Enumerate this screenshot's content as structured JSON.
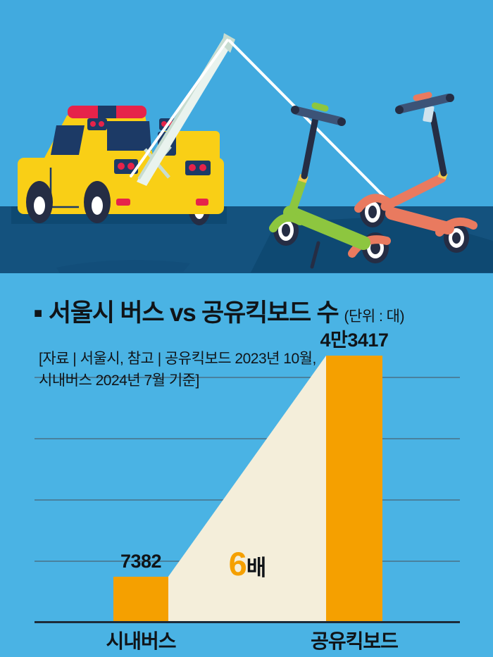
{
  "theme": {
    "sky": "#41aadf",
    "road": "#14527e",
    "shadow": "#0e4972",
    "truck-yellow": "#f9cf16",
    "navy": "#1c3a66",
    "dark-navy": "#252d44",
    "signal-red": "#e6234a",
    "boom-mint": "#e9f3ee",
    "boom-edge": "#c7dcd0",
    "cable-white": "#ffffff",
    "green": "#8dc63f",
    "coral": "#e97a5f",
    "band-yellow": "#f2c94c",
    "tag-blue": "#cfe3ee",
    "bar-steel": "#3c5377",
    "chart-bg": "#4ab3e4",
    "bar-orange": "#f5a000",
    "cream": "#f4eeda",
    "grid": "#4a7087",
    "axis": "#1d2b39",
    "ink": "#101418"
  },
  "illustration": {
    "description": "tow-truck-hoisting-shared-kickboards",
    "elements": [
      "tow-truck",
      "crane-boom",
      "tow-cable",
      "green-kickboard",
      "orange-kickboard",
      "road"
    ]
  },
  "texts": {
    "title_bullet": "■",
    "title": "서울시 버스 vs 공유킥보드 수",
    "unit_label": "(단위 : 대)",
    "source_line1": "[자료 | 서울시, 참고 | 공유킥보드 2023년 10월,",
    "source_line2": "시내버스 2024년 7월 기준]",
    "annotation_number": "6",
    "annotation_suffix": "배"
  },
  "chart_data": {
    "type": "bar",
    "title": "서울시 버스 vs 공유킥보드 수",
    "unit": "대",
    "source": "[자료 | 서울시, 참고 | 공유킥보드 2023년 10월, 시내버스 2024년 7월 기준]",
    "categories": [
      "시내버스",
      "공유킥보드"
    ],
    "values": [
      7382,
      43417
    ],
    "value_labels": [
      "7382",
      "4만3417"
    ],
    "annotation": "6배",
    "ylim": [
      0,
      45000
    ],
    "gridlines": [
      10000,
      20000,
      30000,
      40000
    ],
    "grid": true,
    "legend": false,
    "bar_color": "#f5a000",
    "triangle_color": "#f4eeda"
  }
}
